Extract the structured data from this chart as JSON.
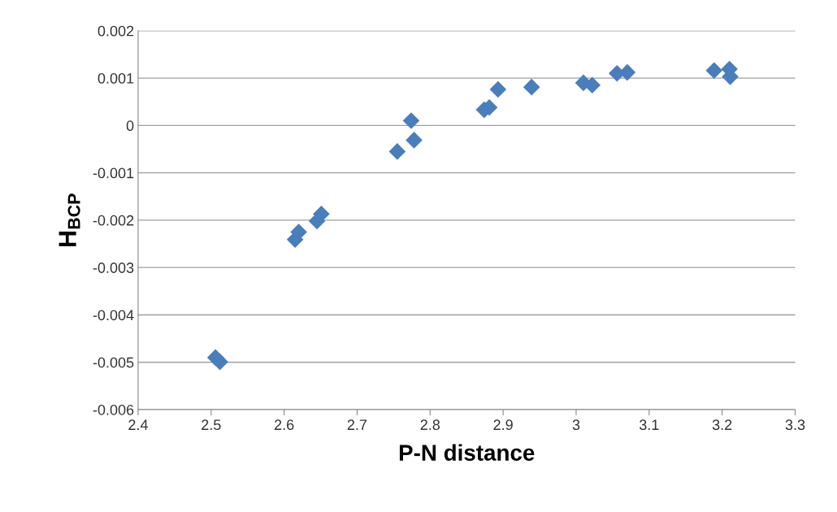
{
  "chart_data": {
    "type": "scatter",
    "xlabel": "P-N distance",
    "ylabel": "H$_{BCP}$",
    "x": [
      2.506,
      2.512,
      2.615,
      2.62,
      2.645,
      2.651,
      2.755,
      2.774,
      2.778,
      2.874,
      2.881,
      2.893,
      2.939,
      3.01,
      3.022,
      3.056,
      3.07,
      3.189,
      3.21,
      3.211
    ],
    "series": [
      {
        "color": "#4a7ebb",
        "values": [
          -0.0049,
          -0.00499,
          -0.00241,
          -0.00225,
          -0.00202,
          -0.00187,
          -0.00055,
          0.0001,
          -0.00031,
          0.00033,
          0.00038,
          0.00076,
          0.00081,
          0.0009,
          0.00085,
          0.0011,
          0.00112,
          0.00116,
          0.00119,
          0.00103
        ]
      }
    ],
    "xlim": [
      2.4,
      3.3
    ],
    "xticks": [
      2.4,
      2.5,
      2.6,
      2.7,
      2.8,
      2.9,
      3,
      3.1,
      3.2,
      3.3
    ],
    "ylim": [
      -0.006,
      0.002
    ],
    "yticks": [
      -0.006,
      -0.005,
      -0.004,
      -0.003,
      -0.002,
      -0.001,
      0,
      0.001,
      0.002
    ],
    "grid": "y",
    "marker": "diamond"
  }
}
